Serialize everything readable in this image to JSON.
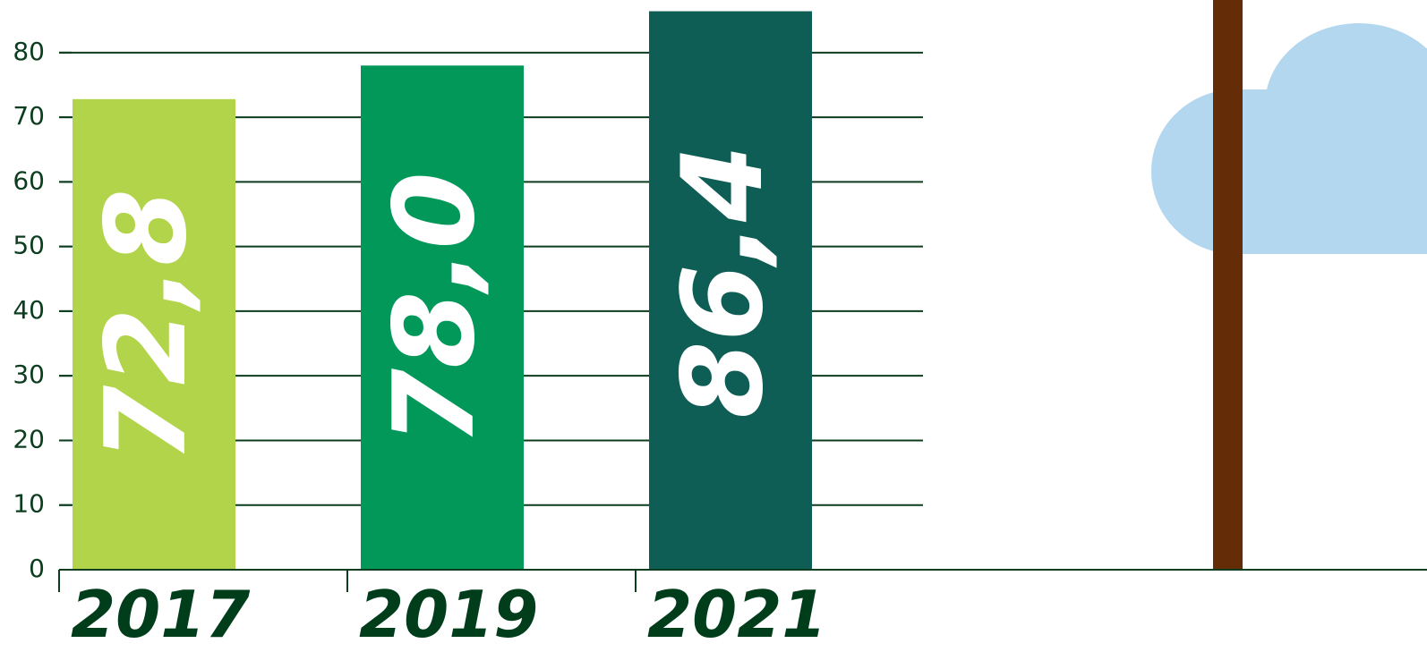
{
  "chart_data": {
    "type": "bar",
    "categories": [
      "2017",
      "2019",
      "2021"
    ],
    "values": [
      72.8,
      78.0,
      86.4
    ],
    "value_labels": [
      "72,8",
      "78,0",
      "86,4"
    ],
    "colors": [
      "#b2d44a",
      "#02985a",
      "#0e5e55"
    ],
    "ylim": [
      0,
      88
    ],
    "yticks": [
      0,
      10,
      20,
      30,
      40,
      50,
      60,
      70,
      80
    ],
    "grid": true
  }
}
